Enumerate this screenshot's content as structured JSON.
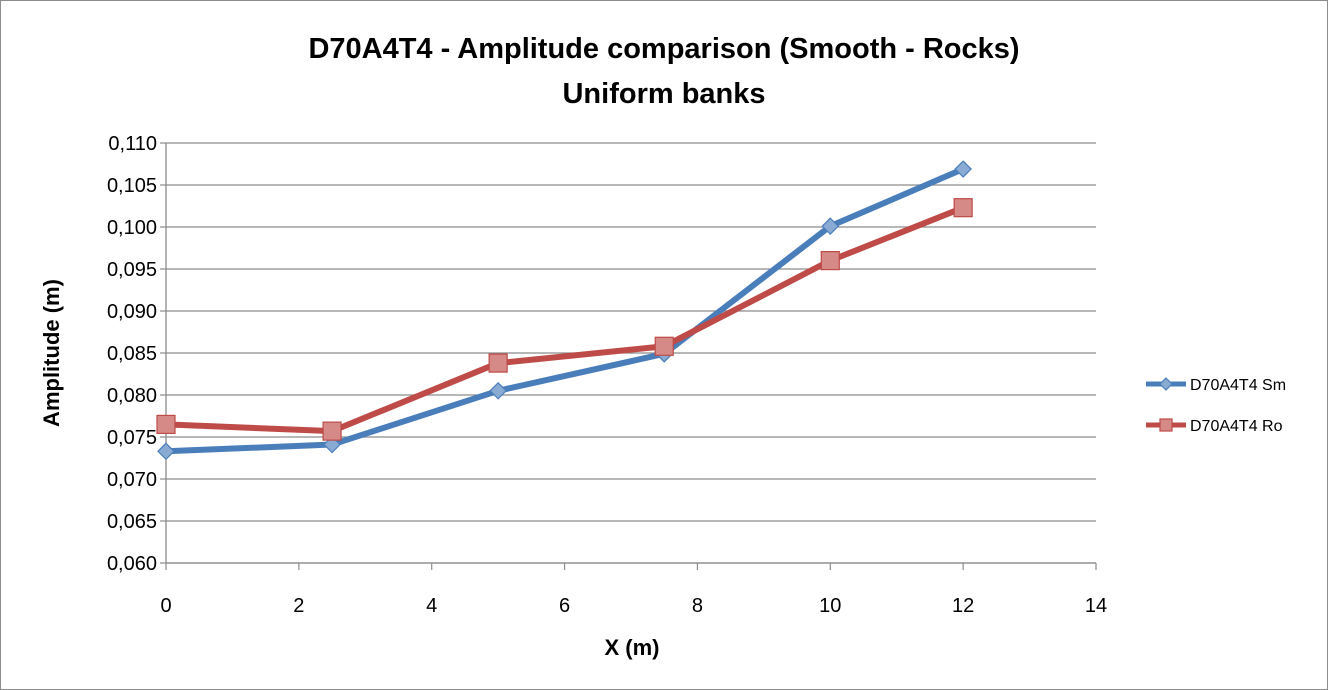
{
  "chart_data": {
    "type": "line",
    "title": [
      "D70A4T4 - Amplitude comparison (Smooth - Rocks)",
      "Uniform banks"
    ],
    "xlabel": "X (m)",
    "ylabel": "Amplitude (m)",
    "xlim": [
      0,
      14
    ],
    "ylim": [
      0.06,
      0.11
    ],
    "xticks": [
      0,
      2,
      4,
      6,
      8,
      10,
      12,
      14
    ],
    "xtick_labels": [
      "0",
      "2",
      "4",
      "6",
      "8",
      "10",
      "12",
      "14"
    ],
    "yticks": [
      0.06,
      0.065,
      0.07,
      0.075,
      0.08,
      0.085,
      0.09,
      0.095,
      0.1,
      0.105,
      0.11
    ],
    "ytick_labels": [
      "0,060",
      "0,065",
      "0,070",
      "0,075",
      "0,080",
      "0,085",
      "0,090",
      "0,095",
      "0,100",
      "0,105",
      "0,110"
    ],
    "grid": "horizontal",
    "legend_position": "right",
    "series": [
      {
        "name": "D70A4T4 Sm",
        "color": "#4a7ebb",
        "marker": "diamond",
        "x": [
          0,
          2.5,
          5,
          7.5,
          10,
          12
        ],
        "y": [
          0.0733,
          0.0741,
          0.0805,
          0.0849,
          0.1001,
          0.1069
        ]
      },
      {
        "name": "D70A4T4 Ro",
        "color": "#be4b48",
        "marker": "square",
        "x": [
          0,
          2.5,
          5,
          7.5,
          10,
          12
        ],
        "y": [
          0.0765,
          0.0757,
          0.0838,
          0.0858,
          0.096,
          0.1023
        ]
      }
    ]
  }
}
